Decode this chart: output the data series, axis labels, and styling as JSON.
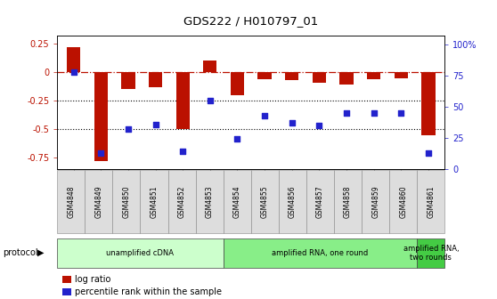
{
  "title": "GDS222 / H010797_01",
  "samples": [
    "GSM4848",
    "GSM4849",
    "GSM4850",
    "GSM4851",
    "GSM4852",
    "GSM4853",
    "GSM4854",
    "GSM4855",
    "GSM4856",
    "GSM4857",
    "GSM4858",
    "GSM4859",
    "GSM4860",
    "GSM4861"
  ],
  "log_ratio": [
    0.22,
    -0.78,
    -0.15,
    -0.13,
    -0.5,
    0.1,
    -0.2,
    -0.06,
    -0.07,
    -0.09,
    -0.11,
    -0.06,
    -0.05,
    -0.55
  ],
  "percentile": [
    78,
    13,
    32,
    36,
    14,
    55,
    24,
    43,
    37,
    35,
    45,
    45,
    45,
    13
  ],
  "ylim_left": [
    -0.85,
    0.32
  ],
  "ylim_right": [
    0,
    107
  ],
  "yticks_left": [
    -0.75,
    -0.5,
    -0.25,
    0,
    0.25
  ],
  "yticks_right": [
    0,
    25,
    50,
    75,
    100
  ],
  "ytick_labels_right": [
    "0",
    "25",
    "50",
    "75",
    "100%"
  ],
  "hline_y": 0.0,
  "dotted_lines": [
    -0.25,
    -0.5
  ],
  "bar_color": "#bb1100",
  "dot_color": "#2222cc",
  "bar_width": 0.5,
  "protocol_groups": [
    {
      "label": "unamplified cDNA",
      "start": 0,
      "end": 5,
      "color": "#ccffcc"
    },
    {
      "label": "amplified RNA, one round",
      "start": 6,
      "end": 12,
      "color": "#88ee88"
    },
    {
      "label": "amplified RNA,\ntwo rounds",
      "start": 13,
      "end": 13,
      "color": "#44cc44"
    }
  ],
  "protocol_label": "protocol",
  "legend_items": [
    {
      "label": "log ratio",
      "color": "#bb1100"
    },
    {
      "label": "percentile rank within the sample",
      "color": "#2222cc"
    }
  ],
  "bg_color": "#ffffff"
}
